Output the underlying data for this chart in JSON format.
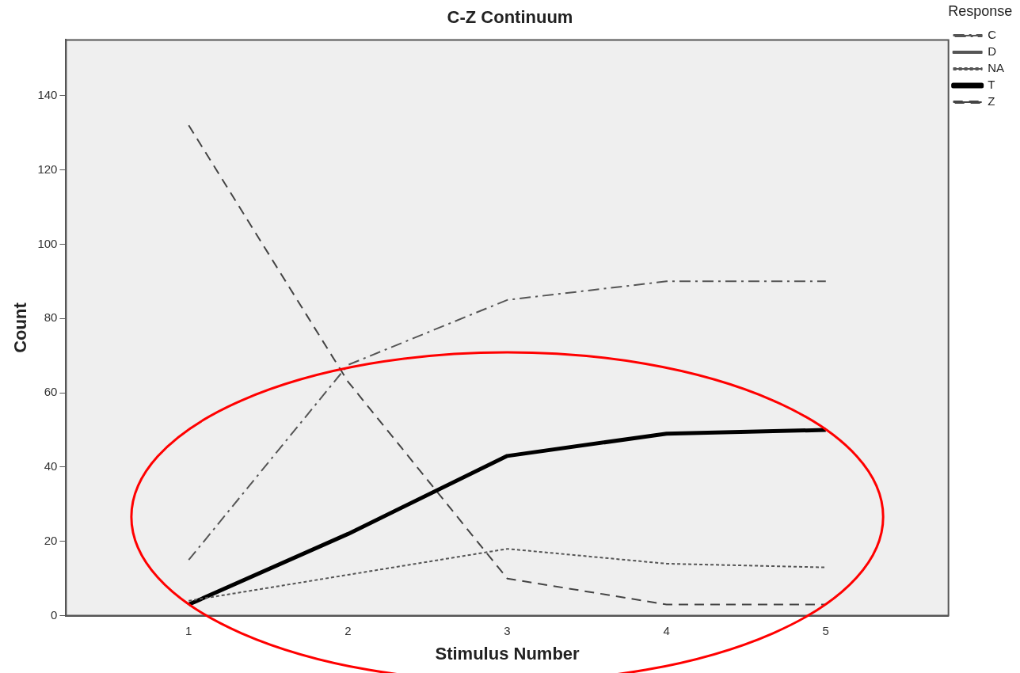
{
  "chart_data": {
    "type": "line",
    "title": "C-Z Continuum",
    "xlabel": "Stimulus Number",
    "ylabel": "Count",
    "legend_title": "Response",
    "legend": "top right",
    "grid": false,
    "marker": "none",
    "x": [
      1,
      2,
      3,
      4,
      5
    ],
    "xlim": [
      0.23,
      5.77
    ],
    "xticks": [
      1,
      2,
      3,
      4,
      5
    ],
    "ylim": [
      0,
      155
    ],
    "yticks": [
      0,
      20,
      40,
      60,
      80,
      100,
      120,
      140
    ],
    "series": [
      {
        "name": "C",
        "color": "#555555",
        "line_style": "dashdot",
        "values": [
          15,
          67.5,
          85,
          90,
          90
        ]
      },
      {
        "name": "D",
        "color": "#555555",
        "line_style": "solid",
        "values": [
          null,
          null,
          null,
          null,
          null
        ]
      },
      {
        "name": "NA",
        "color": "#555555",
        "line_style": "dotted",
        "values": [
          4,
          11,
          18,
          14,
          13
        ]
      },
      {
        "name": "T",
        "color": "#000000",
        "line_style": "solid",
        "values": [
          3,
          22,
          43,
          49,
          50
        ]
      },
      {
        "name": "Z",
        "color": "#444444",
        "line_style": "dashed",
        "values": [
          132,
          63,
          10,
          3,
          3
        ]
      }
    ]
  }
}
